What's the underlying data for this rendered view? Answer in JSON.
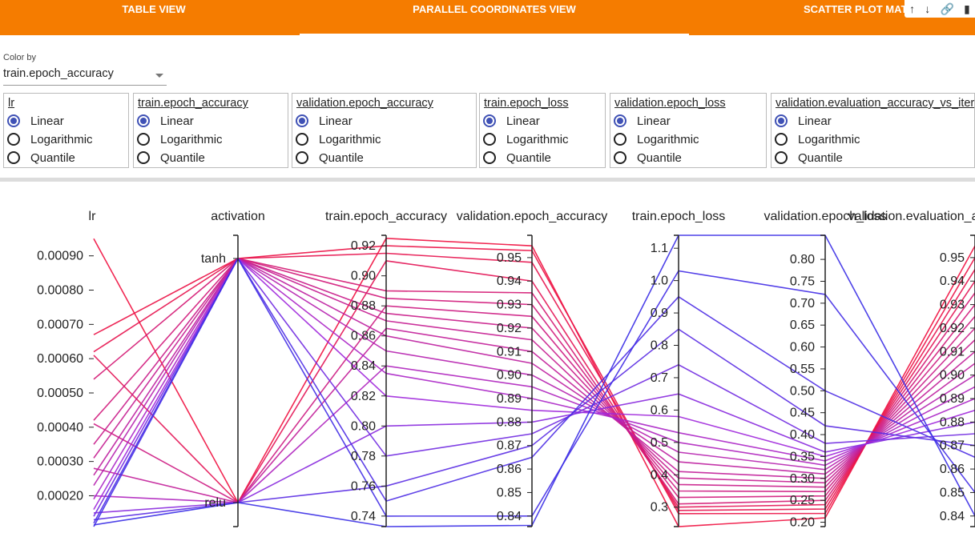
{
  "tabs": [
    {
      "label": "TABLE VIEW",
      "active": false
    },
    {
      "label": "PARALLEL COORDINATES VIEW",
      "active": true
    },
    {
      "label": "SCATTER PLOT MATRIX VIEW",
      "active": false
    }
  ],
  "toolbar_icons": [
    "arrow-up-icon",
    "arrow-down-icon",
    "link-icon",
    "bookmark-icon"
  ],
  "color_by": {
    "label": "Color by",
    "value": "train.epoch_accuracy"
  },
  "scale_options": [
    "Linear",
    "Logarithmic",
    "Quantile"
  ],
  "scale_boxes": [
    {
      "title": "lr",
      "selected": "Linear"
    },
    {
      "title": "train.epoch_accuracy",
      "selected": "Linear"
    },
    {
      "title": "validation.epoch_accuracy",
      "selected": "Linear"
    },
    {
      "title": "train.epoch_loss",
      "selected": "Linear"
    },
    {
      "title": "validation.epoch_loss",
      "selected": "Linear"
    },
    {
      "title": "validation.evaluation_accuracy_vs_iterations",
      "selected": "Linear"
    }
  ],
  "colors": {
    "accent": "#f57c00",
    "radio": "#3f51b5",
    "line_low": "#3a2ee6",
    "line_high": "#f0103c"
  },
  "chart_data": {
    "type": "parallel_coordinates",
    "axes": [
      {
        "name": "lr",
        "min": 0.00011,
        "max": 0.00096,
        "ticks": [
          0.0002,
          0.0003,
          0.0004,
          0.0005,
          0.0006,
          0.0007,
          0.0008,
          0.0009
        ],
        "tick_labels": [
          "0.00020",
          "0.00030",
          "0.00040",
          "0.00050",
          "0.00060",
          "0.00070",
          "0.00080",
          "0.00090"
        ]
      },
      {
        "name": "activation",
        "categories": [
          "tanh",
          "relu"
        ]
      },
      {
        "name": "train.epoch_accuracy",
        "min": 0.733,
        "max": 0.927,
        "ticks": [
          0.74,
          0.76,
          0.78,
          0.8,
          0.82,
          0.84,
          0.86,
          0.88,
          0.9,
          0.92
        ],
        "tick_labels": [
          "0.74",
          "0.76",
          "0.78",
          "0.80",
          "0.82",
          "0.84",
          "0.86",
          "0.88",
          "0.90",
          "0.92"
        ]
      },
      {
        "name": "validation.epoch_accuracy",
        "min": 0.8355,
        "max": 0.9595,
        "ticks": [
          0.84,
          0.85,
          0.86,
          0.87,
          0.88,
          0.89,
          0.9,
          0.91,
          0.92,
          0.93,
          0.94,
          0.95
        ],
        "tick_labels": [
          "0.84",
          "0.85",
          "0.86",
          "0.87",
          "0.88",
          "0.89",
          "0.90",
          "0.91",
          "0.92",
          "0.93",
          "0.94",
          "0.95"
        ]
      },
      {
        "name": "train.epoch_loss",
        "min": 0.24,
        "max": 1.14,
        "ticks": [
          0.3,
          0.4,
          0.5,
          0.6,
          0.7,
          0.8,
          0.9,
          1.0,
          1.1
        ],
        "tick_labels": [
          "0.3",
          "0.4",
          "0.5",
          "0.6",
          "0.7",
          "0.8",
          "0.9",
          "1.0",
          "1.1"
        ]
      },
      {
        "name": "validation.epoch_loss",
        "min": 0.19,
        "max": 0.855,
        "ticks": [
          0.2,
          0.25,
          0.3,
          0.35,
          0.4,
          0.45,
          0.5,
          0.55,
          0.6,
          0.65,
          0.7,
          0.75,
          0.8
        ],
        "tick_labels": [
          "0.20",
          "0.25",
          "0.30",
          "0.35",
          "0.40",
          "0.45",
          "0.50",
          "0.55",
          "0.60",
          "0.65",
          "0.70",
          "0.75",
          "0.80"
        ]
      },
      {
        "name": "validation.evaluation_accuracy_vs_iterations",
        "min": 0.8355,
        "max": 0.9595,
        "ticks": [
          0.84,
          0.85,
          0.86,
          0.87,
          0.88,
          0.89,
          0.9,
          0.91,
          0.92,
          0.93,
          0.94,
          0.95
        ],
        "tick_labels": [
          "0.84",
          "0.85",
          "0.86",
          "0.87",
          "0.88",
          "0.89",
          "0.90",
          "0.91",
          "0.92",
          "0.93",
          "0.94",
          "0.95"
        ]
      }
    ],
    "rows": [
      [
        0.00095,
        "relu",
        0.925,
        0.955,
        0.24,
        0.21,
        0.955
      ],
      [
        0.00067,
        "tanh",
        0.92,
        0.953,
        0.28,
        0.22,
        0.95
      ],
      [
        0.00062,
        "tanh",
        0.915,
        0.948,
        0.29,
        0.23,
        0.945
      ],
      [
        0.00061,
        "relu",
        0.91,
        0.94,
        0.3,
        0.24,
        0.94
      ],
      [
        0.00054,
        "tanh",
        0.89,
        0.935,
        0.31,
        0.25,
        0.935
      ],
      [
        0.00042,
        "tanh",
        0.885,
        0.93,
        0.33,
        0.26,
        0.93
      ],
      [
        0.00041,
        "relu",
        0.88,
        0.925,
        0.35,
        0.27,
        0.925
      ],
      [
        0.00035,
        "tanh",
        0.875,
        0.92,
        0.37,
        0.28,
        0.92
      ],
      [
        0.00031,
        "tanh",
        0.87,
        0.915,
        0.39,
        0.29,
        0.915
      ],
      [
        0.00028,
        "relu",
        0.865,
        0.91,
        0.41,
        0.3,
        0.91
      ],
      [
        0.00026,
        "tanh",
        0.86,
        0.905,
        0.44,
        0.31,
        0.905
      ],
      [
        0.00023,
        "tanh",
        0.85,
        0.9,
        0.47,
        0.32,
        0.9
      ],
      [
        0.0002,
        "relu",
        0.84,
        0.895,
        0.5,
        0.33,
        0.895
      ],
      [
        0.00019,
        "tanh",
        0.835,
        0.89,
        0.53,
        0.34,
        0.89
      ],
      [
        0.00016,
        "tanh",
        0.82,
        0.885,
        0.58,
        0.35,
        0.885
      ],
      [
        0.00015,
        "relu",
        0.8,
        0.88,
        0.65,
        0.36,
        0.88
      ],
      [
        0.00014,
        "tanh",
        0.78,
        0.875,
        0.74,
        0.38,
        0.875
      ],
      [
        0.00013,
        "relu",
        0.76,
        0.87,
        0.85,
        0.42,
        0.87
      ],
      [
        0.00012,
        "tanh",
        0.75,
        0.865,
        0.95,
        0.5,
        0.865
      ],
      [
        0.00011,
        "tanh",
        0.74,
        0.84,
        1.03,
        0.72,
        0.85
      ],
      [
        0.000115,
        "relu",
        0.733,
        0.836,
        1.14,
        0.855,
        0.84
      ]
    ]
  }
}
